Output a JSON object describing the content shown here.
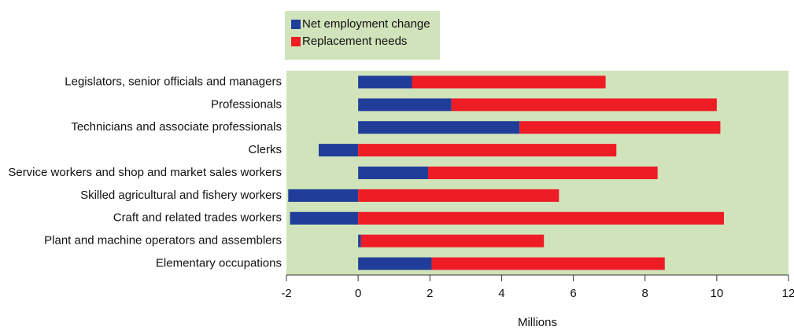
{
  "chart_data": {
    "type": "bar",
    "orientation": "horizontal",
    "stacked": true,
    "x_label": "Millions",
    "categories": [
      "Legislators, senior officials and managers",
      "Professionals",
      "Technicians and associate professionals",
      "Clerks",
      "Service workers and shop and market sales workers",
      "Skilled agricultural and fishery workers",
      "Craft and related trades workers",
      "Plant and machine operators and assemblers",
      "Elementary occupations"
    ],
    "series": [
      {
        "name": "Net employment change",
        "color": "#1f3d99",
        "values": [
          1.5,
          2.6,
          4.5,
          -1.1,
          1.95,
          -1.95,
          -1.9,
          0.08,
          2.05
        ]
      },
      {
        "name": "Replacement needs",
        "color": "#ee1c25",
        "values": [
          5.4,
          7.4,
          5.6,
          7.2,
          6.4,
          5.6,
          10.2,
          5.1,
          6.5
        ]
      }
    ],
    "xlim": [
      -2,
      12
    ],
    "xticks": [
      -2,
      0,
      2,
      4,
      6,
      8,
      10,
      12
    ],
    "background": "#d1e3bb"
  }
}
